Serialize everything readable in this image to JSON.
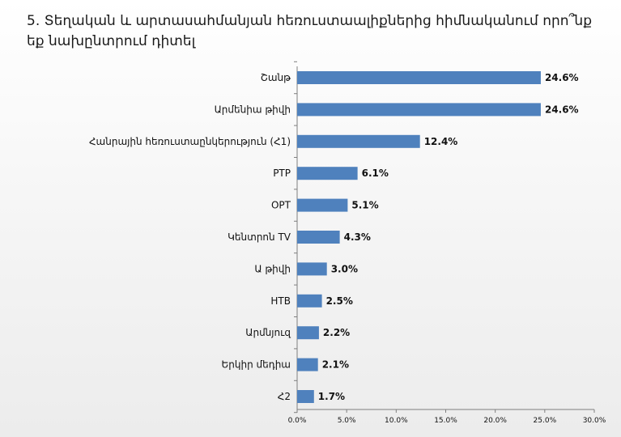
{
  "page": {
    "title": "5. Տեղական և արտասահմանյան հեռուստաալիքներից հիմնականում որո՞նք եք նախընտրում դիտել"
  },
  "chart_data": {
    "type": "bar",
    "orientation": "horizontal",
    "categories": [
      "Շանթ",
      "Արմենիա թիվի",
      "Հանրային հեռուստաընկերություն (Հ1)",
      "РТР",
      "ОРТ",
      "Կենտրոն TV",
      "Ա թիվի",
      "НТВ",
      "Արմնյուզ",
      "Երկիր մեդիա",
      "Հ2"
    ],
    "values": [
      24.6,
      24.6,
      12.4,
      6.1,
      5.1,
      4.3,
      3.0,
      2.5,
      2.2,
      2.1,
      1.7
    ],
    "value_labels": [
      "24.6%",
      "24.6%",
      "12.4%",
      "6.1%",
      "5.1%",
      "4.3%",
      "3.0%",
      "2.5%",
      "2.2%",
      "2.1%",
      "1.7%"
    ],
    "xlim": [
      0,
      30
    ],
    "ticks": [
      0,
      5,
      10,
      15,
      20,
      25,
      30
    ],
    "tick_labels": [
      "0.0%",
      "5.0%",
      "10.0%",
      "15.0%",
      "20.0%",
      "25.0%",
      "30.0%"
    ],
    "grid": false,
    "legend": "none",
    "bar_color": "#4f81bd"
  }
}
